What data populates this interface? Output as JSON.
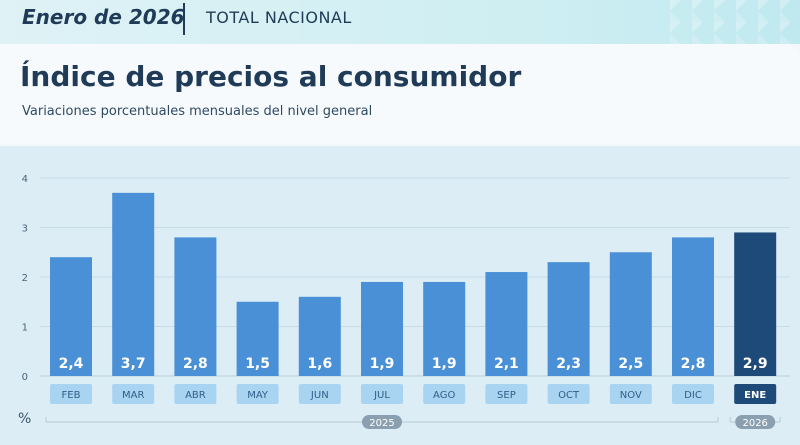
{
  "header": {
    "period": "Enero de 2026",
    "scope": "TOTAL NACIONAL"
  },
  "title": "Índice de precios al consumidor",
  "subtitle": "Variaciones porcentuales mensuales del nivel general",
  "colors": {
    "bar": "#4a90d6",
    "bar_highlight": "#1e4a7a",
    "tick_box": "#a8d4f2",
    "tick_box_highlight": "#1e4a7a",
    "year_pill": "#8aa0b0"
  },
  "chart_data": {
    "type": "bar",
    "categories": [
      "FEB",
      "MAR",
      "ABR",
      "MAY",
      "JUN",
      "JUL",
      "AGO",
      "SEP",
      "OCT",
      "NOV",
      "DIC",
      "ENE"
    ],
    "values": [
      2.4,
      3.7,
      2.8,
      1.5,
      1.6,
      1.9,
      1.9,
      2.1,
      2.3,
      2.5,
      2.8,
      2.9
    ],
    "value_labels": [
      "2,4",
      "3,7",
      "2,8",
      "1,5",
      "1,6",
      "1,9",
      "1,9",
      "2,1",
      "2,3",
      "2,5",
      "2,8",
      "2,9"
    ],
    "highlight_index": 11,
    "ylim": [
      0,
      4
    ],
    "yticks": [
      "0",
      "1",
      "2",
      "3",
      "4"
    ],
    "ylabel": "%",
    "year_groups": [
      {
        "label": "2025",
        "from": 0,
        "to": 10
      },
      {
        "label": "2026",
        "from": 11,
        "to": 11
      }
    ],
    "grid": true
  }
}
